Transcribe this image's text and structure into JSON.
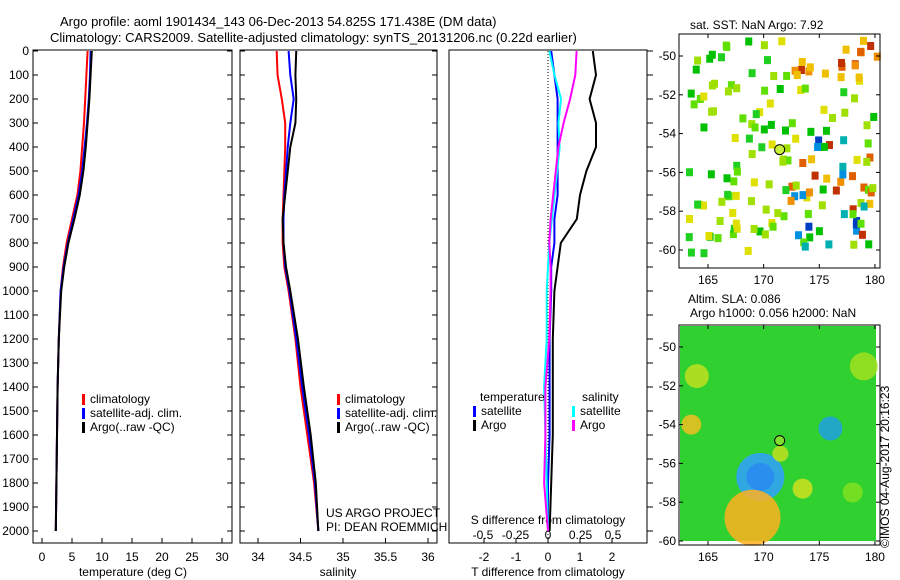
{
  "title_line1": "Argo profile: aoml 1901434_143 06-Dec-2013 54.825S 171.438E (DM data)",
  "title_line2": "Climatology: CARS2009. Satellite-adjusted climatology: synTS_20131206.nc (0.22d earlier)",
  "credit": "US ARGO PROJECT",
  "pi": "PI: DEAN ROEMMICH",
  "watermark": "©IMOS 04-Aug-2017 20:16:23",
  "colors": {
    "climatology": "#ff0000",
    "satellite": "#0000ff",
    "argo": "#000000",
    "sal_satellite": "#00ffff",
    "sal_argo": "#ff00ff"
  },
  "chart_data": [
    {
      "type": "line",
      "xlabel": "temperature (deg C)",
      "xlim": [
        -1,
        31
      ],
      "xticks": [
        0,
        5,
        10,
        15,
        20,
        25,
        30
      ],
      "ylim": [
        0,
        2050
      ],
      "yticks": [
        0,
        100,
        200,
        300,
        400,
        500,
        600,
        700,
        800,
        900,
        1000,
        1100,
        1200,
        1300,
        1400,
        1500,
        1600,
        1700,
        1800,
        1900,
        2000
      ],
      "depth": [
        0,
        100,
        200,
        300,
        400,
        500,
        600,
        700,
        800,
        900,
        1000,
        1200,
        1400,
        1600,
        1800,
        2000
      ],
      "legend": [
        "climatology",
        "satellite-adj. clim.",
        "Argo(..raw -QC)"
      ],
      "series": [
        {
          "name": "climatology",
          "values": [
            7.6,
            7.4,
            7.2,
            7.0,
            6.7,
            6.4,
            5.9,
            5.0,
            4.1,
            3.5,
            3.1,
            2.8,
            2.6,
            2.5,
            2.4,
            2.3
          ]
        },
        {
          "name": "satellite-adj. clim.",
          "values": [
            8.1,
            8.0,
            7.8,
            7.5,
            7.1,
            6.7,
            6.1,
            5.2,
            4.3,
            3.6,
            3.1,
            2.8,
            2.6,
            2.5,
            2.4,
            2.3
          ]
        },
        {
          "name": "Argo(..raw -QC)",
          "values": [
            8.3,
            8.1,
            7.9,
            7.6,
            7.3,
            6.9,
            6.3,
            5.4,
            4.4,
            3.7,
            3.2,
            2.8,
            2.6,
            2.5,
            2.4,
            2.3
          ]
        }
      ]
    },
    {
      "type": "line",
      "xlabel": "salinity",
      "xlim": [
        33.7,
        36.1
      ],
      "xticks": [
        34,
        34.5,
        35,
        35.5,
        36
      ],
      "ylim": [
        0,
        2050
      ],
      "depth": [
        0,
        100,
        200,
        300,
        400,
        500,
        600,
        700,
        800,
        900,
        1000,
        1200,
        1400,
        1600,
        1800,
        2000
      ],
      "legend": [
        "climatology",
        "satellite-adj. clim.",
        "Argo(..raw -QC)"
      ],
      "series": [
        {
          "name": "climatology",
          "values": [
            34.22,
            34.23,
            34.28,
            34.32,
            34.32,
            34.31,
            34.3,
            34.29,
            34.29,
            34.31,
            34.36,
            34.44,
            34.5,
            34.58,
            34.66,
            34.71
          ]
        },
        {
          "name": "satellite-adj. clim.",
          "values": [
            34.36,
            34.38,
            34.42,
            34.38,
            34.35,
            34.33,
            34.31,
            34.3,
            34.3,
            34.32,
            34.37,
            34.45,
            34.52,
            34.6,
            34.67,
            34.71
          ]
        },
        {
          "name": "Argo(..raw -QC)",
          "values": [
            34.45,
            34.44,
            34.45,
            34.44,
            34.38,
            34.35,
            34.32,
            34.29,
            34.3,
            34.33,
            34.38,
            34.47,
            34.54,
            34.62,
            34.68,
            34.71
          ]
        }
      ]
    },
    {
      "type": "line",
      "xlabel": "T difference from climatology",
      "xlabel2": "S difference from climatology",
      "xlim": [
        -2.9,
        3.1
      ],
      "xticks": [
        -2,
        -1,
        0,
        1,
        2
      ],
      "xticks_s": [
        -0.5,
        -0.25,
        0,
        0.25,
        0.5
      ],
      "depth": [
        0,
        100,
        200,
        300,
        400,
        500,
        600,
        700,
        800,
        900,
        1000,
        1200,
        1400,
        1600,
        1800,
        2000
      ],
      "legend_t": "temperature",
      "legend_s": "salinity",
      "legend_items": [
        "satellite",
        "Argo"
      ],
      "series": [
        {
          "name": "T satellite",
          "unit": "T",
          "values": [
            0.1,
            0.2,
            0.3,
            0.3,
            0.3,
            0.3,
            0.3,
            0.2,
            0.2,
            0.1,
            0.1,
            0.05,
            0.05,
            0.05,
            0.0,
            0.0
          ]
        },
        {
          "name": "T Argo",
          "unit": "T",
          "values": [
            1.4,
            1.5,
            1.3,
            1.5,
            1.5,
            1.2,
            1.0,
            0.9,
            0.4,
            0.3,
            0.2,
            0.15,
            0.15,
            0.15,
            0.1,
            0.05
          ]
        },
        {
          "name": "S satellite",
          "unit": "S",
          "values": [
            0.01,
            0.05,
            0.1,
            0.08,
            0.09,
            0.07,
            0.05,
            0.03,
            0.01,
            0.0,
            -0.01,
            -0.01,
            -0.03,
            -0.02,
            -0.01,
            0.0
          ]
        },
        {
          "name": "S Argo",
          "unit": "S",
          "values": [
            0.22,
            0.21,
            0.17,
            0.12,
            0.08,
            0.06,
            0.04,
            0.02,
            0.01,
            0.02,
            0.02,
            0.01,
            -0.02,
            -0.02,
            -0.03,
            0.0
          ]
        }
      ]
    },
    {
      "type": "heatmap",
      "title": "sat. SST: NaN Argo: 7.92",
      "xticks": [
        165,
        170,
        175,
        180
      ],
      "yticks": [
        -50,
        -52,
        -54,
        -56,
        -58,
        -60
      ],
      "profile_location": [
        171.438,
        -54.825
      ]
    },
    {
      "type": "heatmap",
      "title": "Altim. SLA: 0.086",
      "title2": "Argo h1000: 0.056 h2000: NaN",
      "xticks": [
        165,
        170,
        175,
        180
      ],
      "yticks": [
        -50,
        -52,
        -54,
        -56,
        -58,
        -60
      ],
      "profile_location": [
        171.438,
        -54.825
      ]
    }
  ]
}
